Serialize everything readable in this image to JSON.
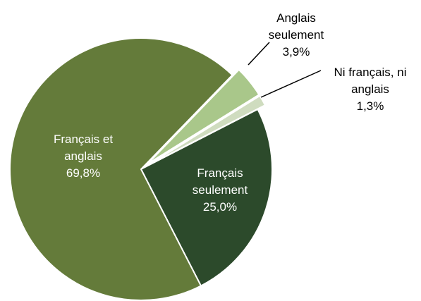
{
  "chart_data": {
    "type": "pie",
    "categories": [
      "Anglais seulement",
      "Ni français, ni anglais",
      "Français seulement",
      "Français et anglais"
    ],
    "values": [
      3.9,
      1.3,
      25.0,
      69.8
    ],
    "value_labels": [
      "3,9%",
      "1,3%",
      "25,0%",
      "69,8%"
    ],
    "colors": [
      "#a9c78a",
      "#cfdcbf",
      "#2c4a2b",
      "#647b3a"
    ]
  }
}
